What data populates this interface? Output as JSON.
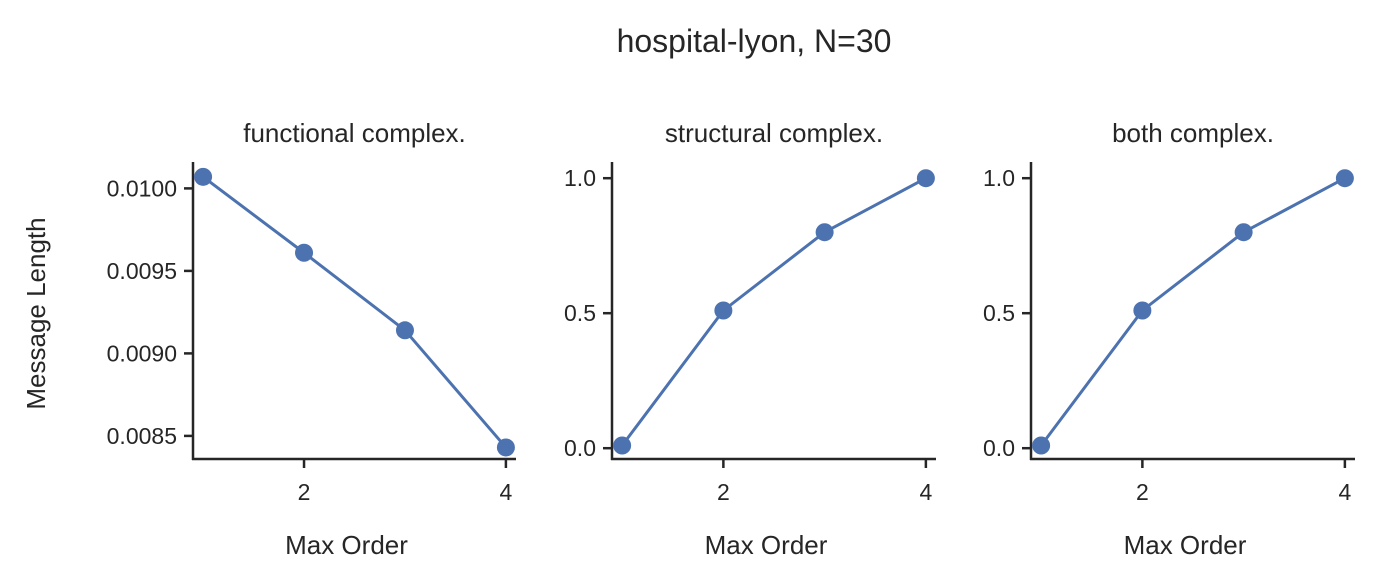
{
  "figure_title": "hospital-lyon, N=30",
  "chart_data": [
    {
      "type": "line",
      "title": "functional complex.",
      "xlabel": "Max Order",
      "ylabel": "Message Length",
      "x": [
        1,
        2,
        3,
        4
      ],
      "series": [
        {
          "values": [
            0.01007,
            0.00961,
            0.00914,
            0.00843
          ]
        }
      ],
      "xticks": [
        2,
        4
      ],
      "xtick_labels": [
        "2",
        "4"
      ],
      "yticks": [
        0.0085,
        0.009,
        0.0095,
        0.01
      ],
      "ytick_labels": [
        "0.0085",
        "0.0090",
        "0.0095",
        "0.0100"
      ],
      "xlim": [
        0.9,
        4.1
      ],
      "ylim": [
        0.00836,
        0.01016
      ],
      "color": "#4c72b0",
      "grid": false
    },
    {
      "type": "line",
      "title": "structural complex.",
      "xlabel": "Max Order",
      "ylabel": "",
      "x": [
        1,
        2,
        3,
        4
      ],
      "series": [
        {
          "values": [
            0.01,
            0.51,
            0.8,
            1.0
          ]
        }
      ],
      "xticks": [
        2,
        4
      ],
      "xtick_labels": [
        "2",
        "4"
      ],
      "yticks": [
        0,
        0.5,
        1
      ],
      "ytick_labels": [
        "0.0",
        "0.5",
        "1.0"
      ],
      "xlim": [
        0.9,
        4.1
      ],
      "ylim": [
        -0.04,
        1.06
      ],
      "color": "#4c72b0",
      "grid": false
    },
    {
      "type": "line",
      "title": "both complex.",
      "xlabel": "Max Order",
      "ylabel": "",
      "x": [
        1,
        2,
        3,
        4
      ],
      "series": [
        {
          "values": [
            0.01,
            0.51,
            0.8,
            1.0
          ]
        }
      ],
      "xticks": [
        2,
        4
      ],
      "xtick_labels": [
        "2",
        "4"
      ],
      "yticks": [
        0,
        0.5,
        1
      ],
      "ytick_labels": [
        "0.0",
        "0.5",
        "1.0"
      ],
      "xlim": [
        0.9,
        4.1
      ],
      "ylim": [
        -0.04,
        1.06
      ],
      "color": "#4c72b0",
      "grid": false
    }
  ]
}
